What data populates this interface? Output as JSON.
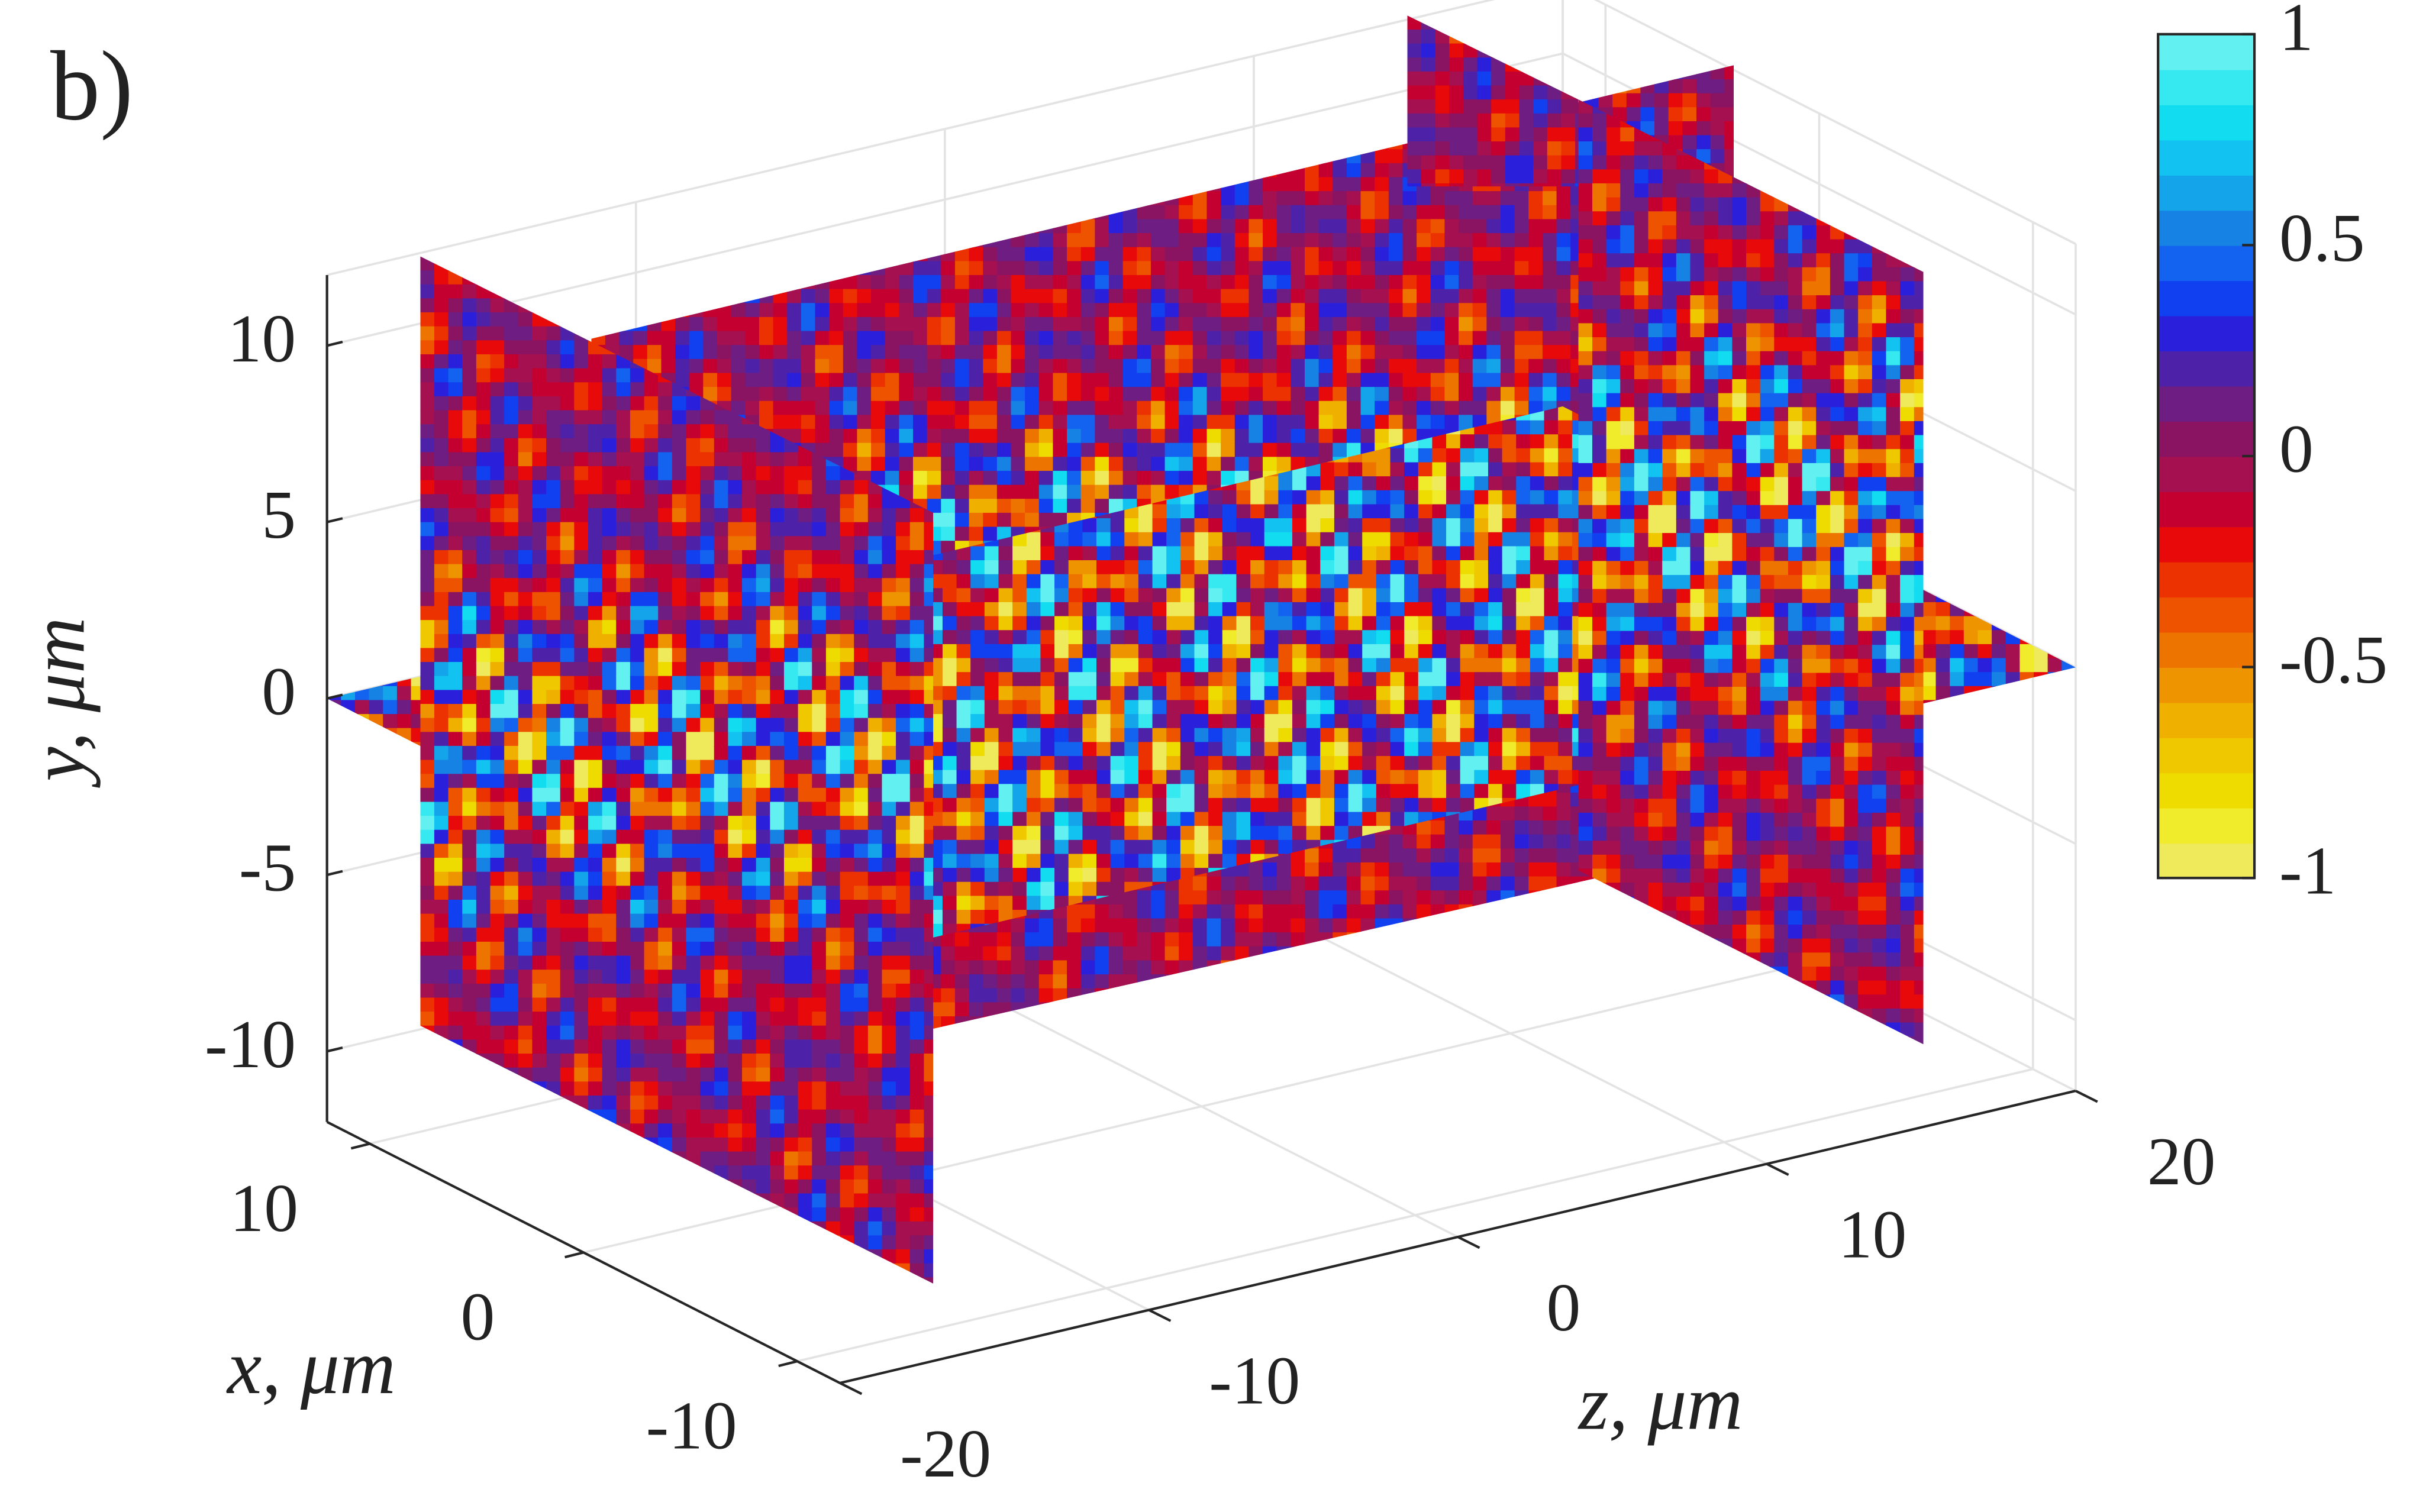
{
  "chart_data": {
    "type": "slice3d",
    "panel_label": "b)",
    "xlabel": "x, μm",
    "ylabel": "y, μm",
    "zlabel": "z, μm",
    "xlim": [
      -12,
      12
    ],
    "ylim": [
      -12,
      12
    ],
    "zlim": [
      -20,
      20
    ],
    "xticks": [
      -10,
      0,
      10
    ],
    "yticks": [
      -10,
      -5,
      0,
      5,
      10
    ],
    "zticks": [
      -20,
      -10,
      0,
      10,
      20
    ],
    "grid": true,
    "colorbar": {
      "clim": [
        -1,
        1
      ],
      "ticks": [
        -1,
        -0.5,
        0,
        0.5,
        1
      ],
      "colormap": [
        "#eeea5c",
        "#f0ec2c",
        "#eedc00",
        "#f0c800",
        "#f0b000",
        "#ee9400",
        "#ee7400",
        "#ee5400",
        "#ec3200",
        "#e80a0a",
        "#c40030",
        "#a41050",
        "#8a1462",
        "#6e1e82",
        "#4e22a8",
        "#2a20dc",
        "#1040f0",
        "#1462f0",
        "#1682e4",
        "#14a4ea",
        "#12c2f0",
        "#12dcf0",
        "#36e8f0",
        "#62f0f0"
      ]
    }
  }
}
